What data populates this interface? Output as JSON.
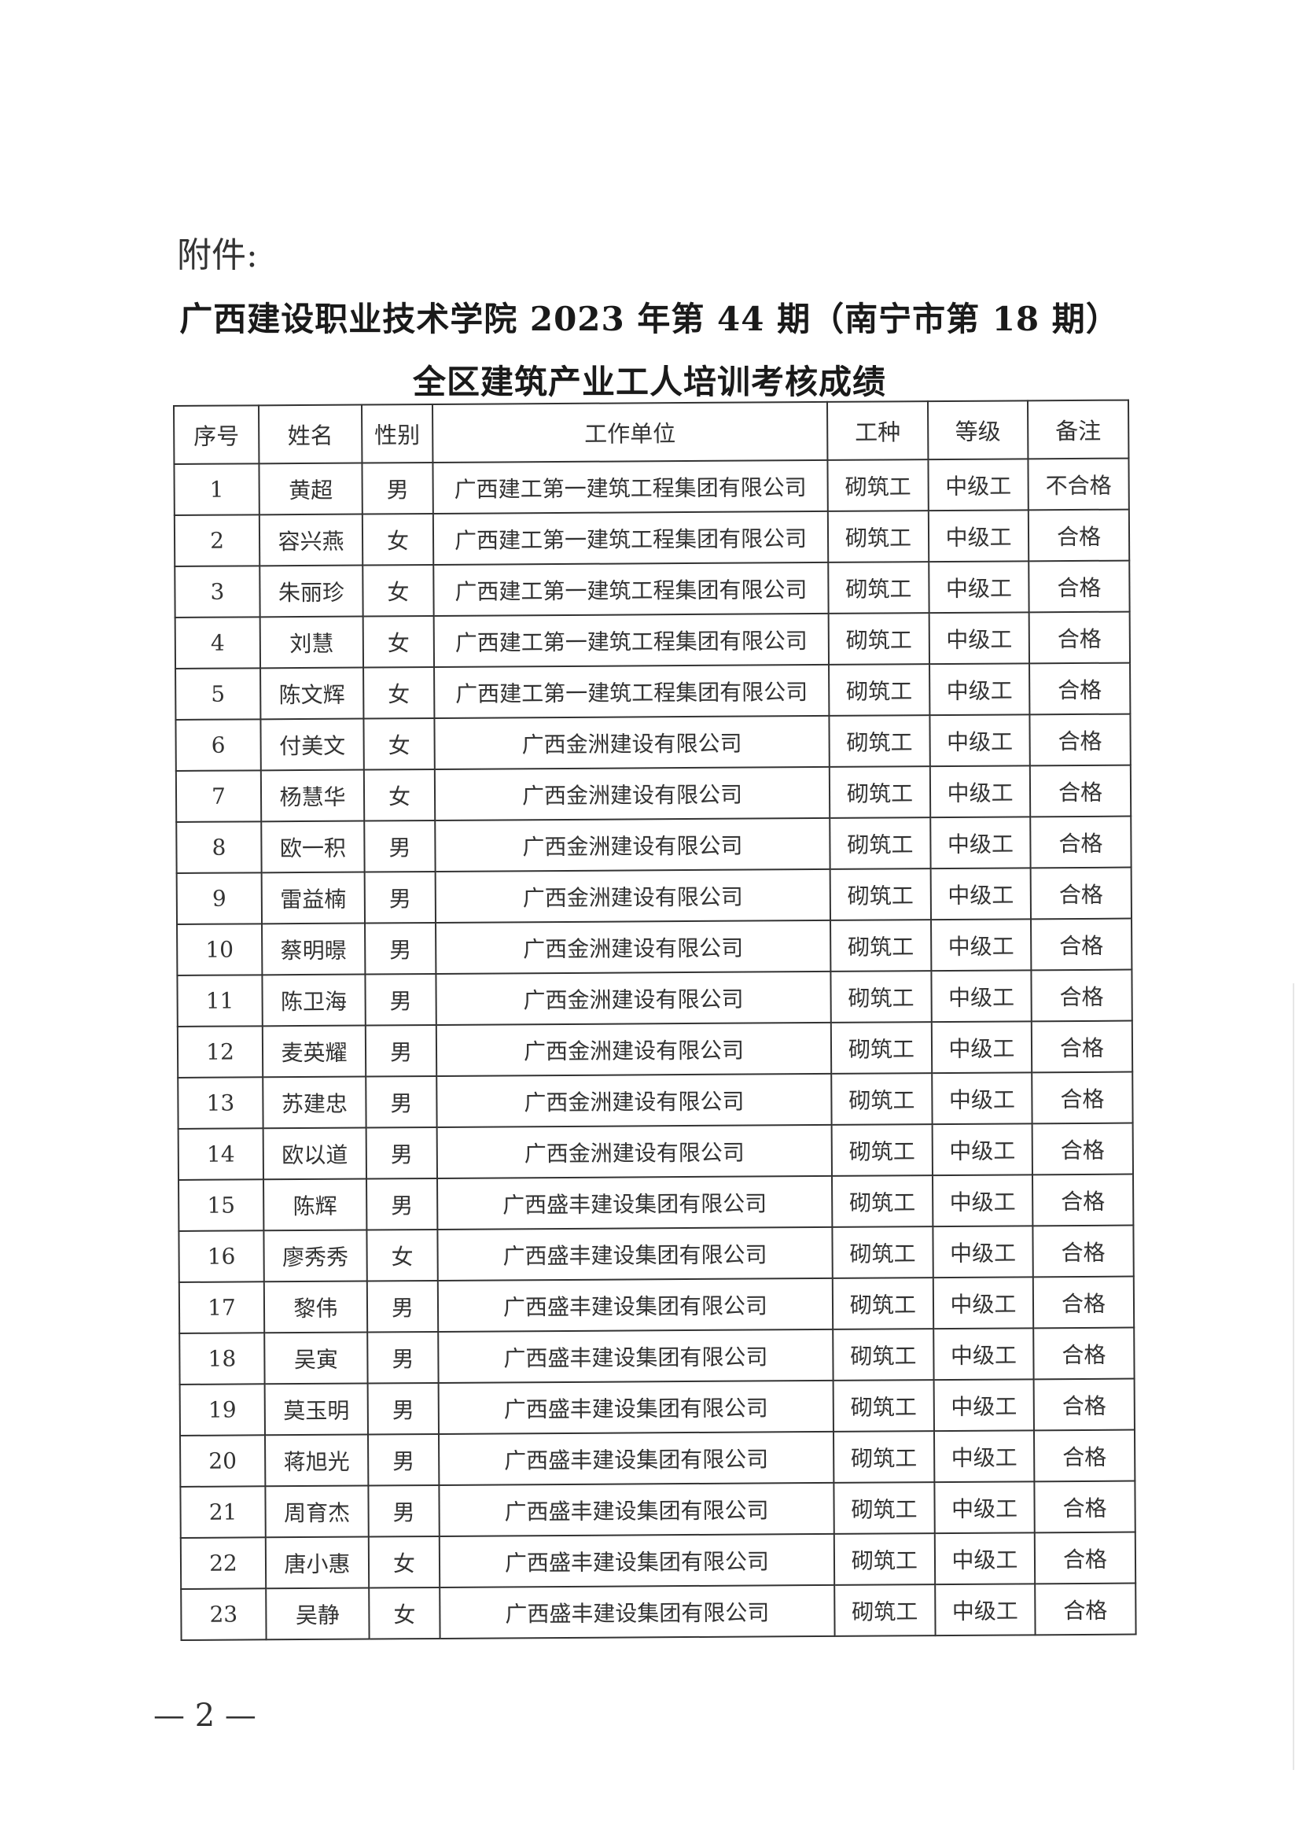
{
  "attachment_label": "附件:",
  "title_line1": "广西建设职业技术学院 2023 年第 44 期（南宁市第 18 期）",
  "title_line2": "全区建筑产业工人培训考核成绩",
  "table": {
    "headers": [
      "序号",
      "姓名",
      "性别",
      "工作单位",
      "工种",
      "等级",
      "备注"
    ],
    "rows": [
      [
        "1",
        "黄超",
        "男",
        "广西建工第一建筑工程集团有限公司",
        "砌筑工",
        "中级工",
        "不合格"
      ],
      [
        "2",
        "容兴燕",
        "女",
        "广西建工第一建筑工程集团有限公司",
        "砌筑工",
        "中级工",
        "合格"
      ],
      [
        "3",
        "朱丽珍",
        "女",
        "广西建工第一建筑工程集团有限公司",
        "砌筑工",
        "中级工",
        "合格"
      ],
      [
        "4",
        "刘慧",
        "女",
        "广西建工第一建筑工程集团有限公司",
        "砌筑工",
        "中级工",
        "合格"
      ],
      [
        "5",
        "陈文辉",
        "女",
        "广西建工第一建筑工程集团有限公司",
        "砌筑工",
        "中级工",
        "合格"
      ],
      [
        "6",
        "付美文",
        "女",
        "广西金洲建设有限公司",
        "砌筑工",
        "中级工",
        "合格"
      ],
      [
        "7",
        "杨慧华",
        "女",
        "广西金洲建设有限公司",
        "砌筑工",
        "中级工",
        "合格"
      ],
      [
        "8",
        "欧一积",
        "男",
        "广西金洲建设有限公司",
        "砌筑工",
        "中级工",
        "合格"
      ],
      [
        "9",
        "雷益楠",
        "男",
        "广西金洲建设有限公司",
        "砌筑工",
        "中级工",
        "合格"
      ],
      [
        "10",
        "蔡明暻",
        "男",
        "广西金洲建设有限公司",
        "砌筑工",
        "中级工",
        "合格"
      ],
      [
        "11",
        "陈卫海",
        "男",
        "广西金洲建设有限公司",
        "砌筑工",
        "中级工",
        "合格"
      ],
      [
        "12",
        "麦英耀",
        "男",
        "广西金洲建设有限公司",
        "砌筑工",
        "中级工",
        "合格"
      ],
      [
        "13",
        "苏建忠",
        "男",
        "广西金洲建设有限公司",
        "砌筑工",
        "中级工",
        "合格"
      ],
      [
        "14",
        "欧以道",
        "男",
        "广西金洲建设有限公司",
        "砌筑工",
        "中级工",
        "合格"
      ],
      [
        "15",
        "陈辉",
        "男",
        "广西盛丰建设集团有限公司",
        "砌筑工",
        "中级工",
        "合格"
      ],
      [
        "16",
        "廖秀秀",
        "女",
        "广西盛丰建设集团有限公司",
        "砌筑工",
        "中级工",
        "合格"
      ],
      [
        "17",
        "黎伟",
        "男",
        "广西盛丰建设集团有限公司",
        "砌筑工",
        "中级工",
        "合格"
      ],
      [
        "18",
        "吴寅",
        "男",
        "广西盛丰建设集团有限公司",
        "砌筑工",
        "中级工",
        "合格"
      ],
      [
        "19",
        "莫玉明",
        "男",
        "广西盛丰建设集团有限公司",
        "砌筑工",
        "中级工",
        "合格"
      ],
      [
        "20",
        "蒋旭光",
        "男",
        "广西盛丰建设集团有限公司",
        "砌筑工",
        "中级工",
        "合格"
      ],
      [
        "21",
        "周育杰",
        "男",
        "广西盛丰建设集团有限公司",
        "砌筑工",
        "中级工",
        "合格"
      ],
      [
        "22",
        "唐小惠",
        "女",
        "广西盛丰建设集团有限公司",
        "砌筑工",
        "中级工",
        "合格"
      ],
      [
        "23",
        "吴静",
        "女",
        "广西盛丰建设集团有限公司",
        "砌筑工",
        "中级工",
        "合格"
      ]
    ]
  },
  "page_number": "— 2 —"
}
